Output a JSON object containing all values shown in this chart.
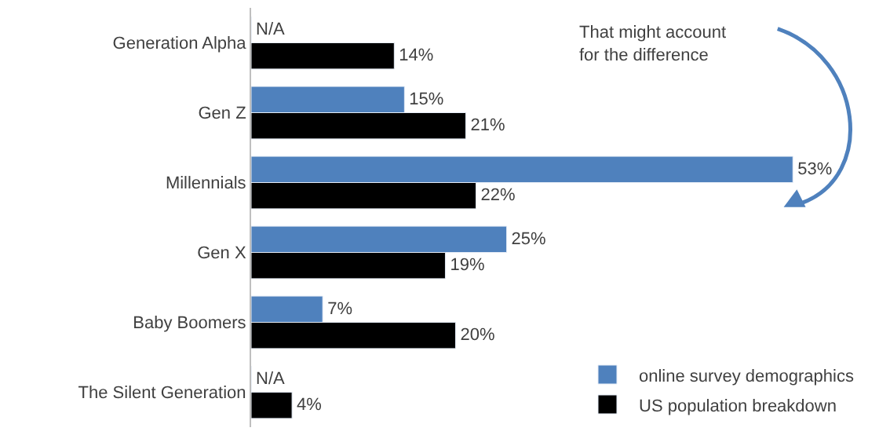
{
  "chart_data": {
    "type": "bar",
    "orientation": "horizontal",
    "categories": [
      "Generation Alpha",
      "Gen Z",
      "Millennials",
      "Gen X",
      "Baby Boomers",
      "The Silent Generation"
    ],
    "series": [
      {
        "name": "online survey demographics",
        "color": "#4f81bd",
        "values": [
          null,
          15,
          53,
          25,
          7,
          null
        ],
        "value_labels": [
          "N/A",
          "15%",
          "53%",
          "25%",
          "7%",
          "N/A"
        ]
      },
      {
        "name": "US population breakdown",
        "color": "#000000",
        "values": [
          14,
          21,
          22,
          19,
          20,
          4
        ],
        "value_labels": [
          "14%",
          "21%",
          "22%",
          "19%",
          "20%",
          "4%"
        ]
      }
    ],
    "annotations": [
      "That might account for the difference"
    ],
    "legend": "bottom right"
  }
}
